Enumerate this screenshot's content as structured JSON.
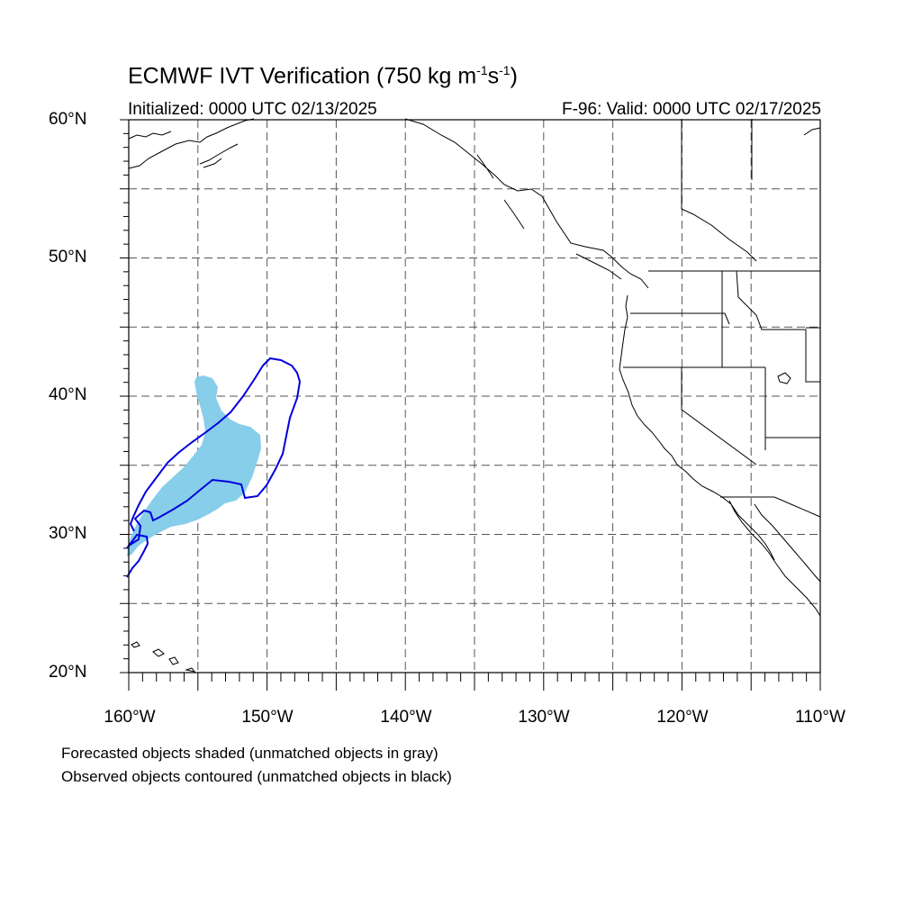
{
  "title_main": "ECMWF IVT Verification (750 kg m",
  "title_sup1": "-1",
  "title_mid": "s",
  "title_sup2": "-1",
  "title_end": ")",
  "initialized": "Initialized: 0000 UTC 02/13/2025",
  "valid": "F-96: Valid: 0000 UTC 02/17/2025",
  "lat_labels": [
    "60°N",
    "50°N",
    "40°N",
    "30°N",
    "20°N"
  ],
  "lon_labels": [
    "160°W",
    "150°W",
    "140°W",
    "130°W",
    "120°W",
    "110°W"
  ],
  "notes": [
    "Forecasted objects shaded (unmatched objects in gray)",
    "Observed objects contoured (unmatched objects in black)"
  ],
  "map": {
    "lon_range": [
      -160,
      -110
    ],
    "lat_range": [
      20,
      60
    ],
    "grid_spacing_deg": 5,
    "colors": {
      "forecast_fill": "#87ceeb",
      "observed_contour": "#0000dd",
      "coastline": "#000000",
      "grid": "#555555"
    }
  }
}
